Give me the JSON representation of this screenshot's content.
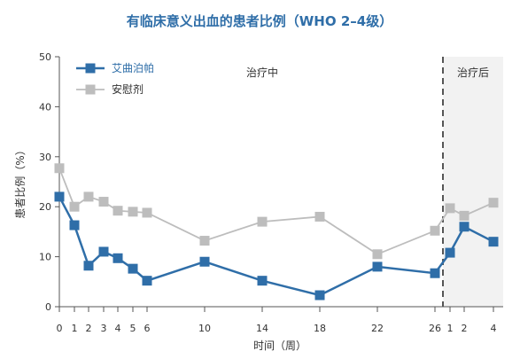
{
  "chart_data": {
    "type": "line",
    "title": "有临床意义出血的患者比例（WHO 2–4级）",
    "xlabel": "时间（周）",
    "ylabel": "患者比例（%）",
    "ylim": [
      0,
      50
    ],
    "yticks": [
      "0",
      "10",
      "20",
      "30",
      "40",
      "50"
    ],
    "x": [
      "0",
      "1",
      "2",
      "3",
      "4",
      "5",
      "6",
      "10",
      "14",
      "18",
      "22",
      "26",
      "1",
      "2",
      "4"
    ],
    "regions": [
      {
        "label": "治疗中"
      },
      {
        "label": "治疗后"
      }
    ],
    "legend_position": "top-left",
    "series": [
      {
        "name": "艾曲泊帕",
        "color": "#2f6ea8",
        "values": [
          22,
          16.3,
          8.2,
          11,
          9.7,
          7.6,
          5.2,
          9,
          5.2,
          2.3,
          8,
          6.7,
          10.8,
          16,
          13
        ]
      },
      {
        "name": "安慰剂",
        "color": "#bdbdbd",
        "values": [
          27.7,
          20,
          22,
          21,
          19.2,
          19,
          18.8,
          13.2,
          17,
          18,
          10.5,
          15.2,
          19.7,
          18.2,
          20.8
        ]
      }
    ]
  }
}
